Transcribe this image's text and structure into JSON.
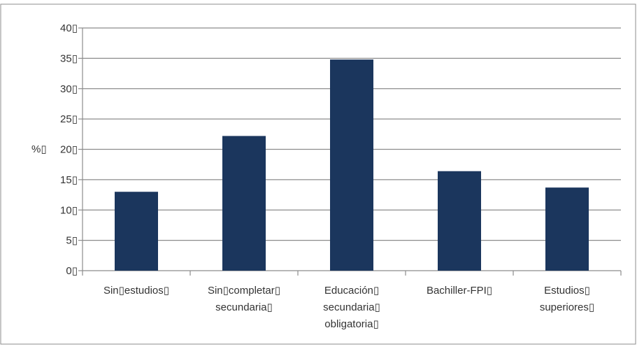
{
  "chart_data": {
    "type": "bar",
    "categories": [
      [
        "Sin▯estudios▯"
      ],
      [
        "Sin▯completar▯",
        "secundaria▯"
      ],
      [
        "Educación▯",
        "secundaria▯",
        "obligatoria▯"
      ],
      [
        "Bachiller-FPI▯"
      ],
      [
        "Estudios▯",
        "superiores▯"
      ]
    ],
    "values": [
      13.0,
      22.2,
      34.8,
      16.4,
      13.7
    ],
    "ylabel": "%▯",
    "ylim": [
      0,
      40
    ],
    "yticks": [
      0,
      5,
      10,
      15,
      20,
      25,
      30,
      35,
      40
    ],
    "ytick_labels": [
      "0▯",
      "5▯",
      "10▯",
      "15▯",
      "20▯",
      "25▯",
      "30▯",
      "35▯",
      "40▯"
    ],
    "grid": true,
    "legend": "none",
    "bar_color": "#1b365d"
  }
}
